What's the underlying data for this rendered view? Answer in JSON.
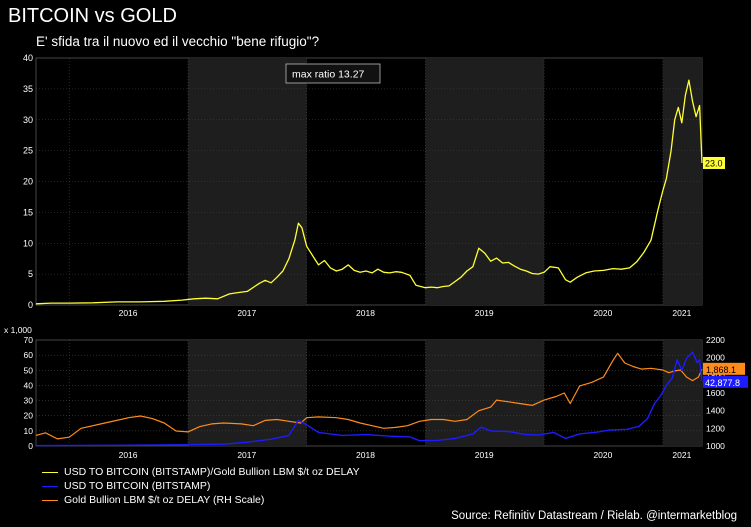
{
  "title": "BITCOIN vs GOLD",
  "subtitle": "E' sfida tra il nuovo ed il vecchio \"bene rifugio\"?",
  "source": "Source: Refinitiv Datastream / Rielab. @intermarketblog",
  "colors": {
    "ratio": "#ffff33",
    "bitcoin": "#1c1cff",
    "gold": "#ff8c1a",
    "panel": "#1e1e1e",
    "background": "#000000"
  },
  "chart_data": [
    {
      "type": "line",
      "annotation": "max ratio 13.27",
      "last_value_label": "23.0",
      "ylim": [
        0,
        40
      ],
      "yticks": [
        0,
        5,
        10,
        15,
        20,
        25,
        30,
        35,
        40
      ],
      "xlim": [
        2015.72,
        2021.33
      ],
      "xticks": [
        "2016",
        "2017",
        "2018",
        "2019",
        "2020",
        "2021"
      ],
      "grid": true,
      "series": [
        {
          "name": "USD TO BITCOIN (BITSTAMP)/Gold Bullion LBM $/t oz DELAY",
          "points": [
            [
              2015.72,
              0.2
            ],
            [
              2015.85,
              0.3
            ],
            [
              2016.0,
              0.3
            ],
            [
              2016.2,
              0.35
            ],
            [
              2016.4,
              0.5
            ],
            [
              2016.6,
              0.5
            ],
            [
              2016.8,
              0.6
            ],
            [
              2016.95,
              0.8
            ],
            [
              2017.05,
              1.0
            ],
            [
              2017.15,
              1.1
            ],
            [
              2017.25,
              1.0
            ],
            [
              2017.35,
              1.8
            ],
            [
              2017.42,
              2.0
            ],
            [
              2017.5,
              2.2
            ],
            [
              2017.6,
              3.5
            ],
            [
              2017.65,
              4.0
            ],
            [
              2017.7,
              3.6
            ],
            [
              2017.75,
              4.5
            ],
            [
              2017.8,
              5.5
            ],
            [
              2017.85,
              7.5
            ],
            [
              2017.9,
              10.5
            ],
            [
              2017.93,
              13.27
            ],
            [
              2017.96,
              12.5
            ],
            [
              2018.0,
              9.5
            ],
            [
              2018.05,
              8.0
            ],
            [
              2018.1,
              6.5
            ],
            [
              2018.15,
              7.2
            ],
            [
              2018.2,
              6.0
            ],
            [
              2018.25,
              5.5
            ],
            [
              2018.3,
              5.8
            ],
            [
              2018.35,
              6.5
            ],
            [
              2018.4,
              5.6
            ],
            [
              2018.45,
              5.3
            ],
            [
              2018.5,
              5.5
            ],
            [
              2018.55,
              5.2
            ],
            [
              2018.6,
              5.8
            ],
            [
              2018.65,
              5.3
            ],
            [
              2018.7,
              5.2
            ],
            [
              2018.75,
              5.4
            ],
            [
              2018.8,
              5.3
            ],
            [
              2018.87,
              4.8
            ],
            [
              2018.92,
              3.2
            ],
            [
              2019.0,
              2.8
            ],
            [
              2019.05,
              2.9
            ],
            [
              2019.1,
              2.8
            ],
            [
              2019.15,
              3.0
            ],
            [
              2019.2,
              3.1
            ],
            [
              2019.25,
              3.8
            ],
            [
              2019.3,
              4.5
            ],
            [
              2019.35,
              5.5
            ],
            [
              2019.4,
              6.2
            ],
            [
              2019.45,
              9.2
            ],
            [
              2019.5,
              8.4
            ],
            [
              2019.55,
              7.1
            ],
            [
              2019.6,
              7.6
            ],
            [
              2019.65,
              6.8
            ],
            [
              2019.7,
              6.9
            ],
            [
              2019.75,
              6.3
            ],
            [
              2019.8,
              5.8
            ],
            [
              2019.85,
              5.5
            ],
            [
              2019.9,
              5.1
            ],
            [
              2019.95,
              5.0
            ],
            [
              2020.0,
              5.3
            ],
            [
              2020.05,
              6.2
            ],
            [
              2020.12,
              6.0
            ],
            [
              2020.18,
              4.1
            ],
            [
              2020.22,
              3.7
            ],
            [
              2020.28,
              4.5
            ],
            [
              2020.35,
              5.2
            ],
            [
              2020.42,
              5.5
            ],
            [
              2020.5,
              5.6
            ],
            [
              2020.58,
              5.9
            ],
            [
              2020.65,
              5.8
            ],
            [
              2020.72,
              6.0
            ],
            [
              2020.78,
              7.0
            ],
            [
              2020.84,
              8.5
            ],
            [
              2020.9,
              10.5
            ],
            [
              2020.96,
              15.5
            ],
            [
              2021.0,
              18.5
            ],
            [
              2021.03,
              20.5
            ],
            [
              2021.07,
              25.0
            ],
            [
              2021.1,
              30.0
            ],
            [
              2021.13,
              32.0
            ],
            [
              2021.16,
              29.5
            ],
            [
              2021.19,
              34.0
            ],
            [
              2021.22,
              36.4
            ],
            [
              2021.25,
              33.0
            ],
            [
              2021.28,
              30.5
            ],
            [
              2021.31,
              32.3
            ],
            [
              2021.33,
              23.0
            ]
          ]
        }
      ]
    },
    {
      "type": "line",
      "y_multiplier_label": "x 1,000",
      "ylim": [
        0,
        70
      ],
      "yticks": [
        0,
        10,
        20,
        30,
        40,
        50,
        60,
        70
      ],
      "ylim_right": [
        1000,
        2200
      ],
      "yticks_right": [
        1000,
        1200,
        1400,
        1600,
        1800,
        2000,
        2200
      ],
      "xticks": [
        "2016",
        "2017",
        "2018",
        "2019",
        "2020",
        "2021"
      ],
      "last_value_labels": {
        "gold": "1,868.1",
        "bitcoin": "42,877.8"
      },
      "grid": true,
      "series": [
        {
          "name": "USD TO BITCOIN (BITSTAMP)",
          "axis": "left",
          "points": [
            [
              2015.72,
              0.25
            ],
            [
              2016.0,
              0.4
            ],
            [
              2016.3,
              0.45
            ],
            [
              2016.6,
              0.6
            ],
            [
              2016.9,
              0.8
            ],
            [
              2017.1,
              1.0
            ],
            [
              2017.3,
              1.2
            ],
            [
              2017.5,
              2.5
            ],
            [
              2017.7,
              4.5
            ],
            [
              2017.85,
              7.0
            ],
            [
              2017.93,
              17.0
            ],
            [
              2018.0,
              14.0
            ],
            [
              2018.1,
              9.0
            ],
            [
              2018.2,
              8.0
            ],
            [
              2018.3,
              7.0
            ],
            [
              2018.5,
              7.5
            ],
            [
              2018.7,
              6.5
            ],
            [
              2018.87,
              6.0
            ],
            [
              2018.95,
              3.5
            ],
            [
              2019.1,
              3.7
            ],
            [
              2019.25,
              5.0
            ],
            [
              2019.4,
              8.0
            ],
            [
              2019.47,
              12.5
            ],
            [
              2019.55,
              10.0
            ],
            [
              2019.7,
              9.5
            ],
            [
              2019.85,
              7.5
            ],
            [
              2019.95,
              7.2
            ],
            [
              2020.08,
              9.0
            ],
            [
              2020.18,
              5.0
            ],
            [
              2020.3,
              8.0
            ],
            [
              2020.45,
              9.2
            ],
            [
              2020.55,
              10.5
            ],
            [
              2020.7,
              11.0
            ],
            [
              2020.8,
              13.0
            ],
            [
              2020.87,
              18.0
            ],
            [
              2020.93,
              28.0
            ],
            [
              2020.98,
              33.0
            ],
            [
              2021.03,
              40.0
            ],
            [
              2021.08,
              45.0
            ],
            [
              2021.12,
              57.0
            ],
            [
              2021.16,
              50.0
            ],
            [
              2021.2,
              58.0
            ],
            [
              2021.25,
              62.0
            ],
            [
              2021.29,
              55.0
            ],
            [
              2021.31,
              57.0
            ],
            [
              2021.33,
              42.9
            ]
          ]
        },
        {
          "name": "Gold Bullion LBM $/t oz DELAY (RH Scale)",
          "axis": "right",
          "points": [
            [
              2015.72,
              1120
            ],
            [
              2015.8,
              1150
            ],
            [
              2015.9,
              1080
            ],
            [
              2016.0,
              1100
            ],
            [
              2016.1,
              1200
            ],
            [
              2016.3,
              1260
            ],
            [
              2016.5,
              1320
            ],
            [
              2016.6,
              1340
            ],
            [
              2016.7,
              1310
            ],
            [
              2016.8,
              1260
            ],
            [
              2016.9,
              1170
            ],
            [
              2017.0,
              1160
            ],
            [
              2017.1,
              1220
            ],
            [
              2017.2,
              1250
            ],
            [
              2017.3,
              1260
            ],
            [
              2017.45,
              1250
            ],
            [
              2017.55,
              1230
            ],
            [
              2017.65,
              1290
            ],
            [
              2017.75,
              1300
            ],
            [
              2017.85,
              1280
            ],
            [
              2017.95,
              1260
            ],
            [
              2018.0,
              1320
            ],
            [
              2018.1,
              1330
            ],
            [
              2018.25,
              1320
            ],
            [
              2018.35,
              1300
            ],
            [
              2018.45,
              1260
            ],
            [
              2018.55,
              1230
            ],
            [
              2018.65,
              1200
            ],
            [
              2018.75,
              1210
            ],
            [
              2018.85,
              1230
            ],
            [
              2018.95,
              1280
            ],
            [
              2019.05,
              1300
            ],
            [
              2019.15,
              1300
            ],
            [
              2019.25,
              1280
            ],
            [
              2019.35,
              1300
            ],
            [
              2019.45,
              1400
            ],
            [
              2019.55,
              1440
            ],
            [
              2019.6,
              1520
            ],
            [
              2019.7,
              1500
            ],
            [
              2019.8,
              1480
            ],
            [
              2019.9,
              1460
            ],
            [
              2020.0,
              1520
            ],
            [
              2020.1,
              1560
            ],
            [
              2020.17,
              1600
            ],
            [
              2020.22,
              1480
            ],
            [
              2020.3,
              1680
            ],
            [
              2020.4,
              1720
            ],
            [
              2020.5,
              1780
            ],
            [
              2020.58,
              1970
            ],
            [
              2020.62,
              2050
            ],
            [
              2020.68,
              1940
            ],
            [
              2020.75,
              1900
            ],
            [
              2020.82,
              1870
            ],
            [
              2020.9,
              1880
            ],
            [
              2021.0,
              1860
            ],
            [
              2021.05,
              1830
            ],
            [
              2021.1,
              1850
            ],
            [
              2021.15,
              1860
            ],
            [
              2021.2,
              1780
            ],
            [
              2021.25,
              1740
            ],
            [
              2021.3,
              1780
            ],
            [
              2021.33,
              1868.1
            ]
          ]
        }
      ]
    }
  ]
}
